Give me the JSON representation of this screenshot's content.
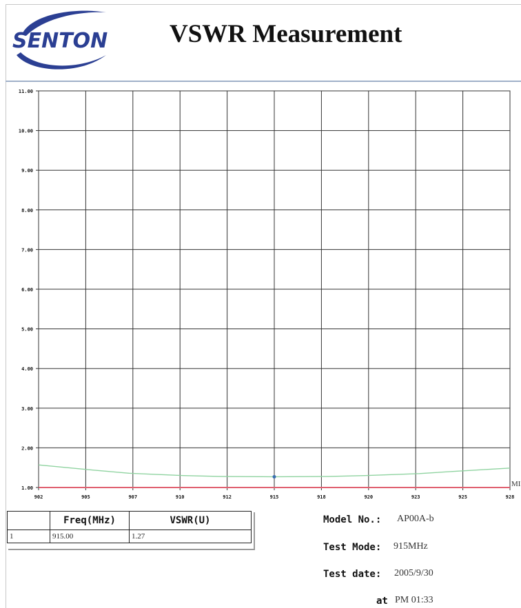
{
  "header": {
    "logo_text": "SENTON",
    "title": "VSWR Measurement"
  },
  "chart_data": {
    "type": "line",
    "xlabel": "",
    "ylabel": "",
    "x_ticks": [
      "902",
      "905",
      "907",
      "910",
      "912",
      "915",
      "918",
      "920",
      "923",
      "925",
      "928"
    ],
    "x_unit_partial": "MI",
    "y_ticks": [
      "1.00",
      "2.00",
      "3.00",
      "4.00",
      "5.00",
      "6.00",
      "7.00",
      "8.00",
      "9.00",
      "10.00",
      "11.00"
    ],
    "xlim": [
      902,
      928
    ],
    "ylim": [
      1,
      11
    ],
    "grid": true,
    "series": [
      {
        "color": "#8fd3a0",
        "x": [
          902,
          905,
          907,
          910,
          912,
          915,
          918,
          920,
          923,
          925,
          928
        ],
        "y": [
          1.57,
          1.44,
          1.36,
          1.3,
          1.28,
          1.27,
          1.28,
          1.3,
          1.35,
          1.41,
          1.49
        ]
      },
      {
        "color": "#e06070",
        "x": [
          902,
          928
        ],
        "y": [
          1.0,
          1.0
        ]
      }
    ],
    "marker": {
      "x": 915,
      "y": 1.27,
      "color": "#3a6fb0"
    }
  },
  "table": {
    "headers": [
      "",
      "Freq(MHz)",
      "VSWR(U)"
    ],
    "rows": [
      [
        "1",
        "915.00",
        "1.27"
      ]
    ]
  },
  "info": {
    "model_label": "Model No.:",
    "model_value": "AP00A-b",
    "mode_label": "Test Mode:",
    "mode_value": "915MHz",
    "date_label": "Test date:",
    "date_value": "2005/9/30",
    "time_label": "at",
    "time_value": "PM 01:33"
  }
}
